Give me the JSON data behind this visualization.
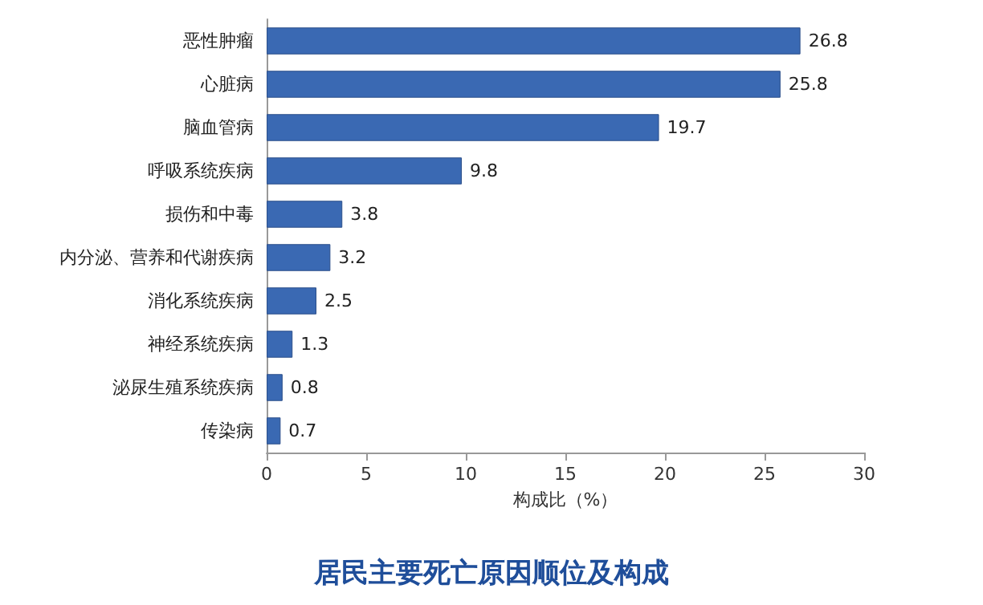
{
  "chart_data": {
    "type": "bar",
    "orientation": "horizontal",
    "title": "居民主要死亡原因顺位及构成",
    "xlabel": "构成比（%）",
    "categories": [
      "恶性肿瘤",
      "心脏病",
      "脑血管病",
      "呼吸系统疾病",
      "损伤和中毒",
      "内分泌、营养和代谢疾病",
      "消化系统疾病",
      "神经系统疾病",
      "泌尿生殖系统疾病",
      "传染病"
    ],
    "values": [
      26.8,
      25.8,
      19.7,
      9.8,
      3.8,
      3.2,
      2.5,
      1.3,
      0.8,
      0.7
    ],
    "color": "#3a69b3",
    "xlim": [
      0,
      30
    ],
    "xticks": [
      0,
      5,
      10,
      15,
      20,
      25,
      30
    ],
    "data_labels": true,
    "grid": false
  }
}
